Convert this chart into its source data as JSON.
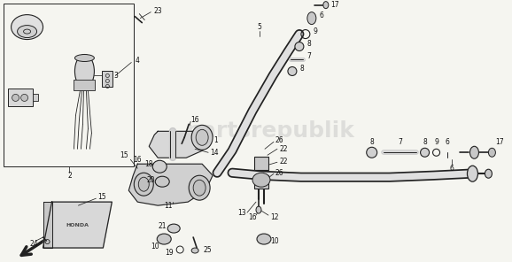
{
  "bg_color": "#f5f5f0",
  "line_color": "#222222",
  "text_color": "#111111",
  "lw_thick": 2.5,
  "lw_pipe": 1.8,
  "lw_thin": 0.8,
  "lw_leader": 0.6,
  "font_size": 5.5,
  "figsize": [
    5.78,
    2.96
  ],
  "dpi": 100,
  "watermark": "partsrepublik",
  "wm_color": "#bbbbbb"
}
